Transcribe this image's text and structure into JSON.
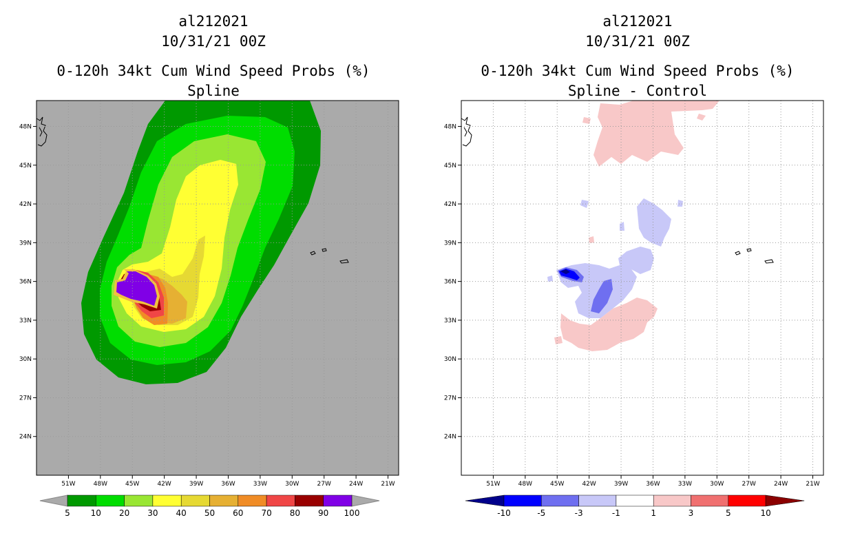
{
  "chart_data": [
    {
      "type": "heatmap",
      "case": "al212021",
      "date": "10/31/21 00Z",
      "title": "0-120h 34kt Cum Wind Speed Probs (%)",
      "subtitle": "Spline",
      "xlim": [
        -54,
        -20
      ],
      "ylim": [
        21,
        50
      ],
      "x_ticks": [
        "51W",
        "48W",
        "45W",
        "42W",
        "39W",
        "36W",
        "33W",
        "30W",
        "27W",
        "24W",
        "21W"
      ],
      "y_ticks": [
        "24N",
        "27N",
        "30N",
        "33N",
        "36N",
        "39N",
        "42N",
        "45N",
        "48N"
      ],
      "colorbar": {
        "labels": [
          "5",
          "10",
          "20",
          "30",
          "40",
          "50",
          "60",
          "70",
          "80",
          "90",
          "100"
        ],
        "colors": [
          "#009900",
          "#00dd00",
          "#99e633",
          "#ffff33",
          "#e6d933",
          "#e6b033",
          "#f08c26",
          "#f04646",
          "#990000",
          "#8000e6"
        ]
      },
      "legend": "bottom",
      "grid": true
    },
    {
      "type": "heatmap",
      "case": "al212021",
      "date": "10/31/21 00Z",
      "title": "0-120h 34kt Cum Wind Speed Probs (%)",
      "subtitle": "Spline - Control",
      "xlim": [
        -54,
        -20
      ],
      "ylim": [
        21,
        50
      ],
      "x_ticks": [
        "51W",
        "48W",
        "45W",
        "42W",
        "39W",
        "36W",
        "33W",
        "30W",
        "27W",
        "24W",
        "21W"
      ],
      "y_ticks": [
        "24N",
        "27N",
        "30N",
        "33N",
        "36N",
        "39N",
        "42N",
        "45N",
        "48N"
      ],
      "colorbar": {
        "labels": [
          "-10",
          "-5",
          "-3",
          "-1",
          "1",
          "3",
          "5",
          "10"
        ],
        "colors": [
          "#00008b",
          "#0000ff",
          "#6f6ff0",
          "#c8c8f8",
          "#ffffff",
          "#f8c8c8",
          "#f07070",
          "#ff0000",
          "#8b0000"
        ]
      },
      "legend": "bottom",
      "grid": true
    }
  ]
}
